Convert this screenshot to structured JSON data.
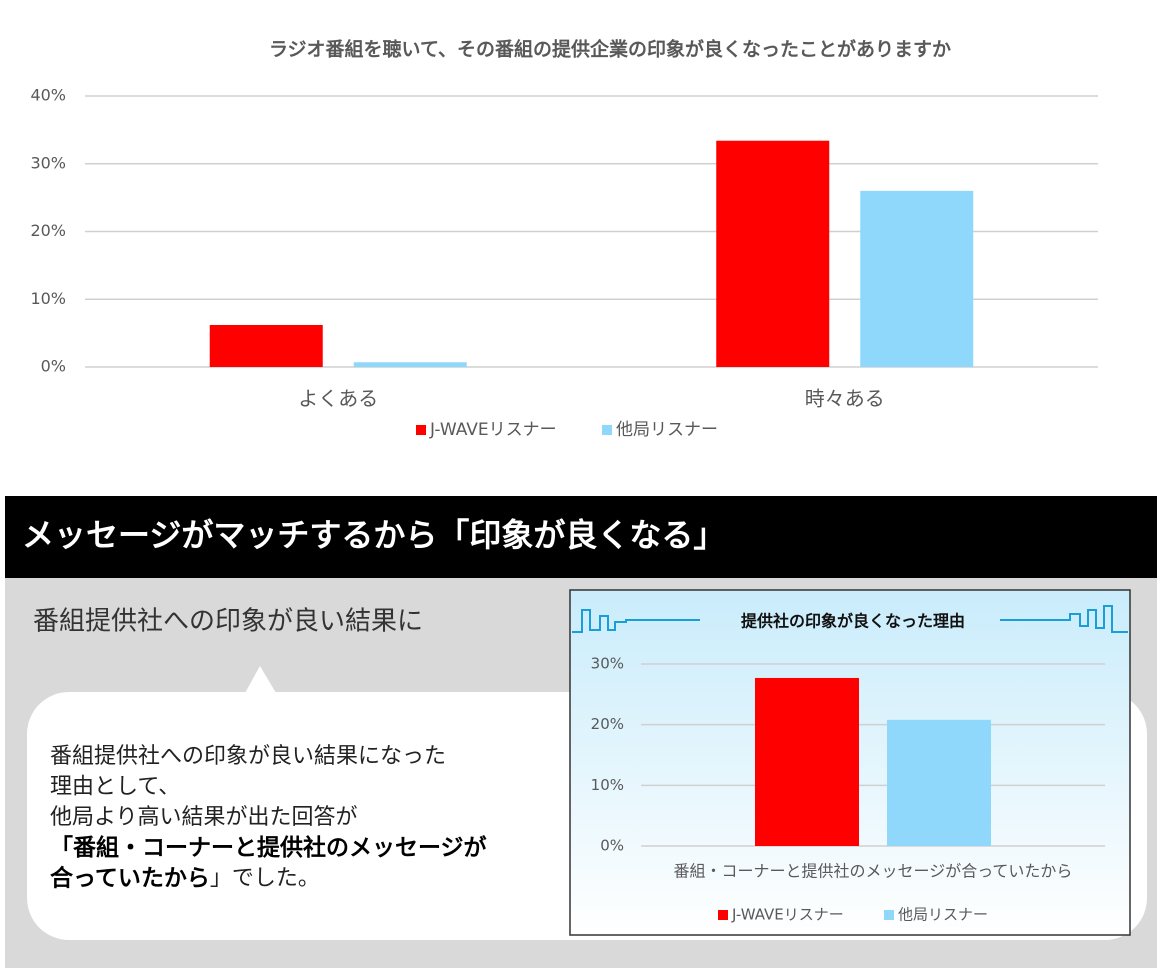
{
  "chart_data": [
    {
      "type": "bar",
      "title": "ラジオ番組を聴いて、その番組の提供企業の印象が良くなったことがありますか",
      "categories": [
        "よくある",
        "時々ある"
      ],
      "series": [
        {
          "name": "J-WAVEリスナー",
          "color": "#ff0000",
          "values": [
            6.2,
            33.4
          ]
        },
        {
          "name": "他局リスナー",
          "color": "#8fd8fb",
          "values": [
            0.7,
            26.0
          ]
        }
      ],
      "ylim": [
        0,
        40
      ],
      "yticks": [
        {
          "value": 0,
          "label": "0%"
        },
        {
          "value": 10,
          "label": "10%"
        },
        {
          "value": 20,
          "label": "20%"
        },
        {
          "value": 30,
          "label": "30%"
        },
        {
          "value": 40,
          "label": "40%"
        }
      ],
      "grid": true,
      "legend": "bottom"
    },
    {
      "type": "bar",
      "title": "提供社の印象が良くなった理由",
      "categories": [
        "番組・コーナーと提供社のメッセージが合っていたから"
      ],
      "series": [
        {
          "name": "J-WAVEリスナー",
          "color": "#ff0000",
          "values": [
            27.7
          ]
        },
        {
          "name": "他局リスナー",
          "color": "#8fd8fb",
          "values": [
            20.8
          ]
        }
      ],
      "ylim": [
        0,
        30
      ],
      "yticks": [
        {
          "value": 0,
          "label": "0%"
        },
        {
          "value": 10,
          "label": "10%"
        },
        {
          "value": 20,
          "label": "20%"
        },
        {
          "value": 30,
          "label": "30%"
        }
      ],
      "grid": true,
      "legend": "bottom"
    }
  ],
  "banner": "メッセージがマッチするから「印象が良くなる」",
  "heading": "番組提供社への印象が良い結果に",
  "callout": {
    "lines": [
      "番組提供社への印象が良い結果になった",
      "理由として、",
      "他局より高い結果が出た回答が"
    ],
    "emphasis_lines": [
      "「番組・コーナーと提供社のメッセージが",
      "合っていたから"
    ],
    "ending": "」でした。"
  }
}
